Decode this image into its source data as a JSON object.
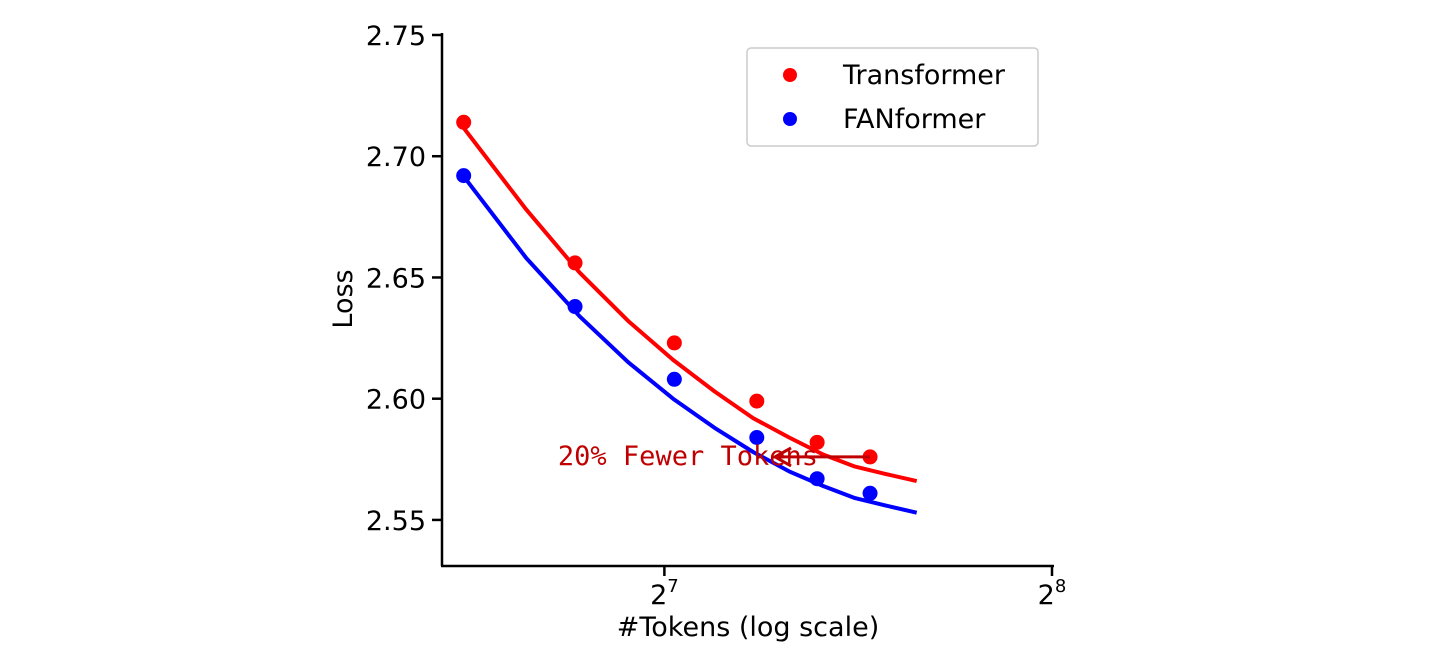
{
  "chart_data": {
    "type": "scatter",
    "title": "",
    "xlabel": "#Tokens (log scale)",
    "ylabel": "Loss",
    "x_scale": "log2",
    "xlim": [
      86,
      256
    ],
    "ylim": [
      2.531,
      2.75
    ],
    "x_ticks": [
      {
        "value": 128,
        "base": "2",
        "exponent": "7"
      },
      {
        "value": 256,
        "base": "2",
        "exponent": "8"
      }
    ],
    "y_ticks": [
      {
        "value": 2.55,
        "label": "2.55"
      },
      {
        "value": 2.6,
        "label": "2.60"
      },
      {
        "value": 2.65,
        "label": "2.65"
      },
      {
        "value": 2.7,
        "label": "2.70"
      },
      {
        "value": 2.75,
        "label": "2.75"
      }
    ],
    "grid": false,
    "legend_position": "top-right",
    "series": [
      {
        "name": "Transformer",
        "color": "#ff0000",
        "points": [
          {
            "x": 89.4,
            "y": 2.714
          },
          {
            "x": 109.1,
            "y": 2.656
          },
          {
            "x": 130.3,
            "y": 2.623
          },
          {
            "x": 151.0,
            "y": 2.599
          },
          {
            "x": 168.2,
            "y": 2.582
          },
          {
            "x": 184.9,
            "y": 2.576
          }
        ],
        "fit": [
          {
            "x": 89.0,
            "y": 2.713
          },
          {
            "x": 100.0,
            "y": 2.678
          },
          {
            "x": 110.0,
            "y": 2.652
          },
          {
            "x": 120.0,
            "y": 2.632
          },
          {
            "x": 130.0,
            "y": 2.616
          },
          {
            "x": 140.0,
            "y": 2.603
          },
          {
            "x": 150.0,
            "y": 2.592
          },
          {
            "x": 160.0,
            "y": 2.584
          },
          {
            "x": 170.0,
            "y": 2.577
          },
          {
            "x": 180.0,
            "y": 2.572
          },
          {
            "x": 190.0,
            "y": 2.569
          },
          {
            "x": 201.0,
            "y": 2.566
          }
        ]
      },
      {
        "name": "FANformer",
        "color": "#0000ff",
        "points": [
          {
            "x": 89.4,
            "y": 2.692
          },
          {
            "x": 109.1,
            "y": 2.638
          },
          {
            "x": 130.3,
            "y": 2.608
          },
          {
            "x": 151.0,
            "y": 2.584
          },
          {
            "x": 168.2,
            "y": 2.567
          },
          {
            "x": 184.9,
            "y": 2.561
          }
        ],
        "fit": [
          {
            "x": 89.0,
            "y": 2.693
          },
          {
            "x": 100.0,
            "y": 2.658
          },
          {
            "x": 110.0,
            "y": 2.634
          },
          {
            "x": 120.0,
            "y": 2.615
          },
          {
            "x": 130.0,
            "y": 2.6
          },
          {
            "x": 140.0,
            "y": 2.588
          },
          {
            "x": 150.0,
            "y": 2.578
          },
          {
            "x": 160.0,
            "y": 2.57
          },
          {
            "x": 170.0,
            "y": 2.564
          },
          {
            "x": 180.0,
            "y": 2.559
          },
          {
            "x": 190.0,
            "y": 2.556
          },
          {
            "x": 201.0,
            "y": 2.553
          }
        ]
      }
    ],
    "annotation": {
      "text": "20% Fewer Tokens",
      "color": "#c00000",
      "arrow_from": {
        "x": 184.9,
        "y": 2.576
      },
      "arrow_to": {
        "x": 156.0,
        "y": 2.576
      }
    }
  }
}
